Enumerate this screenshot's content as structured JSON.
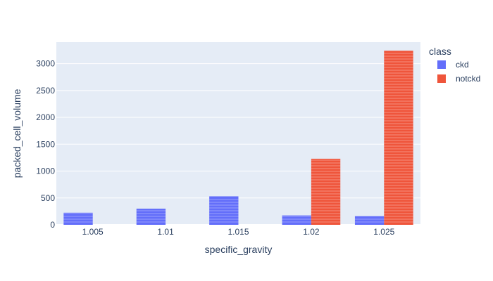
{
  "chart_data": {
    "type": "bar",
    "xlabel": "specific_gravity",
    "ylabel": "packed_cell_volume",
    "categories": [
      "1.005",
      "1.01",
      "1.015",
      "1.02",
      "1.025"
    ],
    "ylim": [
      0,
      3400
    ],
    "yticks": [
      0,
      500,
      1000,
      1500,
      2000,
      2500,
      3000
    ],
    "grid": true,
    "legend": {
      "title": "class",
      "placement": "right"
    },
    "series": [
      {
        "name": "ckd",
        "color": "#636efa",
        "values": [
          225,
          300,
          530,
          175,
          160
        ]
      },
      {
        "name": "notckd",
        "color": "#ef553b",
        "values": [
          0,
          0,
          0,
          1230,
          3240
        ]
      }
    ]
  }
}
